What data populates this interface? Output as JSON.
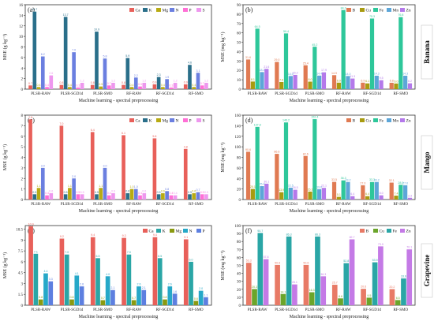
{
  "colors": {
    "Ca": "#e8605a",
    "K": "#2a6f8a",
    "Mg": "#b8ab13",
    "N": "#6b7fe0",
    "P": "#ff6fd6",
    "S": "#ee97ee",
    "B": "#e07a52",
    "Cu": "#a89b10",
    "Fe": "#2ec79a",
    "Mn": "#5da6d8",
    "Zn": "#b479ea",
    "Ca_g": "#e8605a",
    "K_g": "#2aa6a6",
    "Mg_g": "#8a9a10",
    "N_g": "#26a8c8",
    "P_g": "#5d7fe0",
    "B_g": "#e87a66",
    "Cu_g": "#6ba52a",
    "Fe_g": "#2aa6a6",
    "Zn_g": "#c47ae6",
    "fruit_label_bg": "#ffffff"
  },
  "side_labels": [
    "Banana",
    "Mango",
    "Grapevine"
  ],
  "chart_data": [
    {
      "panel": "(a)",
      "type": "bar",
      "ylabel": "MSE (g kg⁻¹)",
      "xlabel": "Machine learning - spectral preprocessing",
      "ylim": [
        0,
        16
      ],
      "yticks": [
        0,
        2,
        4,
        6,
        8,
        10,
        12,
        14,
        16
      ],
      "categories": [
        "PLSR-RAW",
        "PLSR-SGD1d",
        "PLSR-SMO",
        "RF-RAW",
        "RF-SGD1d",
        "RF-SMO"
      ],
      "series": [
        {
          "name": "Ca",
          "values": [
            0.7,
            0.8,
            0.8,
            0.8,
            0.9,
            0.9
          ]
        },
        {
          "name": "K",
          "values": [
            14.7,
            13.7,
            10.9,
            5.9,
            2.3,
            4.6
          ]
        },
        {
          "name": "Mg",
          "values": [
            0.4,
            0.4,
            0.5,
            0.4,
            0.4,
            0.4
          ]
        },
        {
          "name": "N",
          "values": [
            6.2,
            7.0,
            5.8,
            2.2,
            1.9,
            3.1
          ]
        },
        {
          "name": "P",
          "values": [
            0.4,
            0.3,
            0.7,
            0.5,
            0.3,
            0.7
          ]
        },
        {
          "name": "S",
          "values": [
            2.6,
            1.2,
            1.2,
            1.2,
            1.2,
            1.2
          ]
        }
      ],
      "legend": [
        "Ca",
        "K",
        "Mg",
        "N",
        "P",
        "S"
      ]
    },
    {
      "panel": "(b)",
      "type": "bar",
      "ylabel": "MSE (mg kg⁻¹)",
      "xlabel": "Machine learning - spectral preprocessing",
      "ylim": [
        0,
        90
      ],
      "yticks": [
        0,
        10,
        20,
        30,
        40,
        50,
        60,
        70,
        80,
        90
      ],
      "categories": [
        "PLSR-RAW",
        "PLSR-SGD1d",
        "PLSR-SMO",
        "RF-RAW",
        "RF-SGD1d",
        "RF-SMO"
      ],
      "series": [
        {
          "name": "B",
          "values": [
            31.6,
            29.0,
            25.4,
            14.9,
            6.9,
            6.8
          ]
        },
        {
          "name": "Cu",
          "values": [
            8.1,
            7.6,
            8.0,
            6.9,
            6.1,
            6.0
          ]
        },
        {
          "name": "Fe",
          "values": [
            64.5,
            59.4,
            45.2,
            84.3,
            75.3,
            76.8
          ]
        },
        {
          "name": "Mn",
          "values": [
            18.2,
            14.0,
            14.4,
            14.0,
            14.3,
            14.3
          ]
        },
        {
          "name": "Zn",
          "values": [
            21.6,
            15.2,
            17.9,
            11.3,
            9.5,
            6.2
          ]
        }
      ],
      "legend": [
        "B",
        "Cu",
        "Fe",
        "Mn",
        "Zn"
      ]
    },
    {
      "panel": "(c)",
      "type": "bar",
      "ylabel": "MSE (g kg⁻¹)",
      "xlabel": "Machine learning - spectral preprocessing",
      "ylim": [
        0,
        8
      ],
      "yticks": [
        0,
        1,
        2,
        3,
        4,
        5,
        6,
        7,
        8
      ],
      "categories": [
        "PLSR-RAW",
        "PLSR-SGD1d",
        "PLSR-SMO",
        "RF-RAW",
        "RF-SGD1d",
        "RF-SMO"
      ],
      "series": [
        {
          "name": "Ca",
          "values": [
            7.6,
            7.0,
            6.4,
            6.1,
            5.8,
            4.8
          ]
        },
        {
          "name": "K",
          "values": [
            0.5,
            0.5,
            0.5,
            0.6,
            0.5,
            0.5
          ]
        },
        {
          "name": "Mg",
          "values": [
            1.1,
            1.1,
            1.1,
            1.0,
            0.6,
            0.6
          ]
        },
        {
          "name": "N",
          "values": [
            3.0,
            2.0,
            3.0,
            1.0,
            0.8,
            0.7
          ]
        },
        {
          "name": "P",
          "values": [
            0.4,
            0.5,
            0.4,
            0.4,
            0.4,
            0.5
          ]
        },
        {
          "name": "S",
          "values": [
            0.6,
            0.5,
            0.6,
            0.6,
            0.4,
            0.5
          ]
        }
      ],
      "legend": [
        "Ca",
        "K",
        "Mg",
        "N",
        "P",
        "S"
      ]
    },
    {
      "panel": "(d)",
      "type": "bar",
      "ylabel": "MSE (mg kg⁻¹)",
      "xlabel": "Machine learning - spectral preprocessing",
      "ylim": [
        0,
        160
      ],
      "yticks": [
        0,
        20,
        40,
        60,
        80,
        100,
        120,
        140,
        160
      ],
      "categories": [
        "PLSR-RAW",
        "PLSR-SGD1d",
        "PLSR-SMO",
        "RF-RAW",
        "RF-SGD1d",
        "RF-SMO"
      ],
      "series": [
        {
          "name": "B",
          "values": [
            90.6,
            86.6,
            82.6,
            33.5,
            27.0,
            32.1
          ]
        },
        {
          "name": "Cu",
          "values": [
            20.1,
            13.9,
            15.1,
            5.1,
            6.4,
            7.4
          ]
        },
        {
          "name": "Fe",
          "values": [
            137.8,
            146.2,
            152.4,
            36.3,
            33.3,
            28.0
          ]
        },
        {
          "name": "Mn",
          "values": [
            25.4,
            22.5,
            19.6,
            33.2,
            33.2,
            27.0
          ]
        },
        {
          "name": "Zn",
          "values": [
            30.1,
            18.5,
            22.1,
            6.4,
            8.0,
            3.3
          ]
        }
      ],
      "legend": [
        "B",
        "Cu",
        "Fe",
        "Mn",
        "Zn"
      ]
    },
    {
      "panel": "(e)",
      "type": "bar",
      "ylabel": "MSE (g kg⁻¹)",
      "xlabel": "Machine learning - spectral preprocessing",
      "ylim": [
        0,
        11
      ],
      "yticks": [
        0,
        1.5,
        3.0,
        4.5,
        6.0,
        7.5,
        9.0,
        10.5
      ],
      "categories": [
        "PLSR-RAW",
        "PLSR-SGD1d",
        "PLSR-SMO",
        "RF-RAW",
        "RF-SGD1d",
        "RF-SMO"
      ],
      "series": [
        {
          "name": "Ca",
          "values": [
            10.9,
            9.2,
            9.4,
            9.3,
            9.4,
            9.1
          ]
        },
        {
          "name": "K",
          "values": [
            7.1,
            7.0,
            6.5,
            7.0,
            6.5,
            6.0
          ]
        },
        {
          "name": "Mg",
          "values": [
            0.8,
            0.8,
            0.7,
            0.7,
            0.8,
            0.6
          ]
        },
        {
          "name": "N",
          "values": [
            4.4,
            4.1,
            4.0,
            2.6,
            2.6,
            2.0
          ]
        },
        {
          "name": "P",
          "values": [
            3.3,
            2.6,
            2.1,
            2.1,
            1.6,
            1.1
          ]
        }
      ],
      "legend": [
        "Ca",
        "K",
        "Mg",
        "N",
        "P"
      ]
    },
    {
      "panel": "(f)",
      "type": "bar",
      "ylabel": "MSE (mg kg⁻¹)",
      "xlabel": "Machine learning - spectral preprocessing",
      "ylim": [
        0,
        100
      ],
      "yticks": [
        0,
        10,
        20,
        30,
        40,
        50,
        60,
        70,
        80,
        90,
        100
      ],
      "categories": [
        "PLSR-RAW",
        "PLSR-SGD1d",
        "PLSR-SMO",
        "RF-RAW",
        "RF-SGD1d",
        "RF-SMO"
      ],
      "series": [
        {
          "name": "B",
          "values": [
            53.3,
            50.6,
            50.6,
            25.7,
            20.6,
            20.2
          ]
        },
        {
          "name": "Cu",
          "values": [
            20.3,
            14.1,
            16.3,
            8.6,
            9.5,
            6.5
          ]
        },
        {
          "name": "Fe",
          "values": [
            90.7,
            86.3,
            86.3,
            52.8,
            53.9,
            33.6
          ]
        },
        {
          "name": "Zn",
          "values": [
            57.8,
            26.1,
            36.3,
            82.7,
            73.9,
            70.1
          ]
        }
      ],
      "legend": [
        "B",
        "Cu",
        "Fe",
        "Zn"
      ]
    }
  ]
}
